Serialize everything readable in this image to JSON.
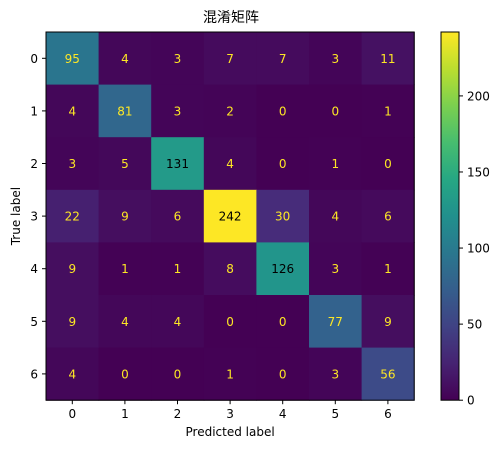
{
  "chart_data": {
    "type": "heatmap",
    "title": "混淆矩阵",
    "xlabel": "Predicted label",
    "ylabel": "True label",
    "x_categories": [
      "0",
      "1",
      "2",
      "3",
      "4",
      "5",
      "6"
    ],
    "y_categories": [
      "0",
      "1",
      "2",
      "3",
      "4",
      "5",
      "6"
    ],
    "matrix": [
      [
        95,
        4,
        3,
        7,
        7,
        3,
        11
      ],
      [
        4,
        81,
        3,
        2,
        0,
        0,
        1
      ],
      [
        3,
        5,
        131,
        4,
        0,
        1,
        0
      ],
      [
        22,
        9,
        6,
        242,
        30,
        4,
        6
      ],
      [
        9,
        1,
        1,
        8,
        126,
        3,
        1
      ],
      [
        9,
        4,
        4,
        0,
        0,
        77,
        9
      ],
      [
        4,
        0,
        0,
        1,
        0,
        3,
        56
      ]
    ],
    "colormap": "viridis",
    "vmin": 0,
    "vmax": 242,
    "colorbar_ticks": [
      0,
      50,
      100,
      150,
      200
    ],
    "colorbar_tick_labels": [
      "0",
      "50",
      "100",
      "150",
      "200"
    ],
    "text_color_dark_cells": "#fde725",
    "text_color_light_cells": "#000000"
  }
}
